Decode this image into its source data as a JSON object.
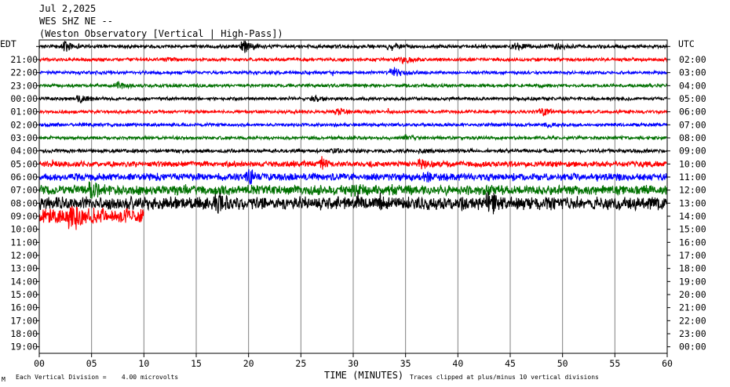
{
  "header": {
    "date": "Jul 2,2025",
    "station": "WES SHZ NE --",
    "description": "(Weston Observatory [Vertical | High-Pass])"
  },
  "footer": {
    "scale_note": "Each Vertical Division =    4.00 microvolts",
    "clip_note": "Traces clipped at plus/minus 10 vertical divisions",
    "corner_mark": "M"
  },
  "chart_data": {
    "type": "line",
    "title": "",
    "xlabel": "TIME (MINUTES)",
    "ylabel_left": "EDT",
    "ylabel_right": "UTC",
    "xlim": [
      0,
      60
    ],
    "x_ticks": [
      "00",
      "05",
      "10",
      "15",
      "20",
      "25",
      "30",
      "35",
      "40",
      "45",
      "50",
      "55",
      "60"
    ],
    "grid_vertical": true,
    "left_hours": [
      "",
      "21:00",
      "22:00",
      "23:00",
      "00:00",
      "01:00",
      "02:00",
      "03:00",
      "04:00",
      "05:00",
      "06:00",
      "07:00",
      "08:00",
      "09:00",
      "10:00",
      "11:00",
      "12:00",
      "13:00",
      "14:00",
      "15:00",
      "16:00",
      "17:00",
      "18:00",
      "19:00"
    ],
    "right_hours": [
      "",
      "02:00",
      "03:00",
      "04:00",
      "05:00",
      "06:00",
      "07:00",
      "08:00",
      "09:00",
      "10:00",
      "11:00",
      "12:00",
      "13:00",
      "14:00",
      "15:00",
      "16:00",
      "17:00",
      "18:00",
      "19:00",
      "20:00",
      "21:00",
      "22:00",
      "23:00",
      "00:00"
    ],
    "color_cycle": [
      "#000000",
      "#ff0000",
      "#0000ff",
      "#007000"
    ],
    "traces": [
      {
        "row": 0,
        "color": "#000000",
        "duration_min": 60,
        "amp": 2.2,
        "events": [
          {
            "t": 2.3,
            "a": 8
          },
          {
            "t": 19.5,
            "a": 8
          },
          {
            "t": 33.5,
            "a": 6
          },
          {
            "t": 45.3,
            "a": 5
          },
          {
            "t": 49.5,
            "a": 3
          }
        ]
      },
      {
        "row": 1,
        "color": "#ff0000",
        "duration_min": 60,
        "amp": 2.0,
        "events": [
          {
            "t": 34.6,
            "a": 5
          },
          {
            "t": 12.0,
            "a": 2
          }
        ]
      },
      {
        "row": 2,
        "color": "#0000ff",
        "duration_min": 60,
        "amp": 2.0,
        "events": [
          {
            "t": 33.8,
            "a": 6
          }
        ]
      },
      {
        "row": 3,
        "color": "#007000",
        "duration_min": 60,
        "amp": 2.0,
        "events": [
          {
            "t": 7.5,
            "a": 5
          }
        ]
      },
      {
        "row": 4,
        "color": "#000000",
        "duration_min": 60,
        "amp": 2.0,
        "events": [
          {
            "t": 3.8,
            "a": 6
          },
          {
            "t": 26.2,
            "a": 4
          }
        ]
      },
      {
        "row": 5,
        "color": "#ff0000",
        "duration_min": 60,
        "amp": 2.0,
        "events": [
          {
            "t": 28.5,
            "a": 4
          },
          {
            "t": 48.0,
            "a": 6
          }
        ]
      },
      {
        "row": 6,
        "color": "#0000ff",
        "duration_min": 60,
        "amp": 2.0,
        "events": [
          {
            "t": 48.5,
            "a": 3
          }
        ]
      },
      {
        "row": 7,
        "color": "#007000",
        "duration_min": 60,
        "amp": 2.0,
        "events": [
          {
            "t": 35.0,
            "a": 3
          }
        ]
      },
      {
        "row": 8,
        "color": "#000000",
        "duration_min": 60,
        "amp": 2.2,
        "events": [
          {
            "t": 28.0,
            "a": 3
          },
          {
            "t": 36.5,
            "a": 3
          }
        ]
      },
      {
        "row": 9,
        "color": "#ff0000",
        "duration_min": 60,
        "amp": 3.5,
        "events": [
          {
            "t": 27.0,
            "a": 7
          },
          {
            "t": 36.5,
            "a": 4
          }
        ]
      },
      {
        "row": 10,
        "color": "#0000ff",
        "duration_min": 60,
        "amp": 4.5,
        "events": [
          {
            "t": 20.0,
            "a": 7
          },
          {
            "t": 37.0,
            "a": 6
          }
        ]
      },
      {
        "row": 11,
        "color": "#007000",
        "duration_min": 60,
        "amp": 6.0,
        "events": [
          {
            "t": 5.0,
            "a": 9
          },
          {
            "t": 30.0,
            "a": 8
          }
        ]
      },
      {
        "row": 12,
        "color": "#000000",
        "duration_min": 60,
        "amp": 8.0,
        "events": [
          {
            "t": 17.0,
            "a": 14
          },
          {
            "t": 43.0,
            "a": 12
          }
        ]
      },
      {
        "row": 13,
        "color": "#ff0000",
        "duration_min": 10,
        "amp": 9.5,
        "events": [
          {
            "t": 3.0,
            "a": 16
          }
        ]
      }
    ]
  }
}
